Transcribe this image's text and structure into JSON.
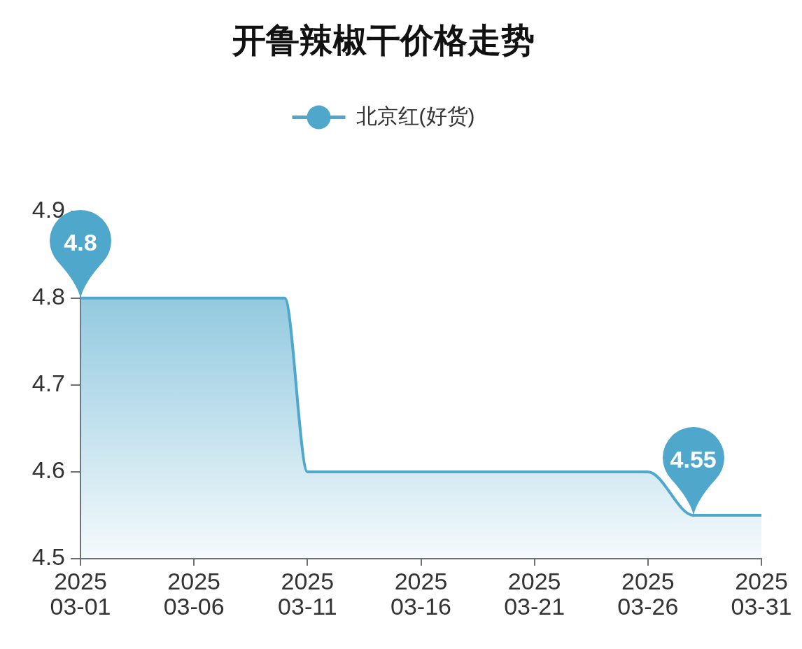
{
  "chart_data": {
    "type": "area",
    "title": "开鲁辣椒干价格走势",
    "x": [
      "2025-03-01",
      "2025-03-10",
      "2025-03-11",
      "2025-03-26",
      "2025-03-28",
      "2025-03-31"
    ],
    "series": [
      {
        "name": "北京红(好货)",
        "color": "#4fa8cc",
        "values": [
          4.8,
          4.8,
          4.6,
          4.6,
          4.55,
          4.55
        ]
      }
    ],
    "xlim": [
      "2025-03-01",
      "2025-03-31"
    ],
    "xticks": [
      {
        "value": "2025-03-01",
        "label": "2025\n03-01"
      },
      {
        "value": "2025-03-06",
        "label": "2025\n03-06"
      },
      {
        "value": "2025-03-11",
        "label": "2025\n03-11"
      },
      {
        "value": "2025-03-16",
        "label": "2025\n03-16"
      },
      {
        "value": "2025-03-21",
        "label": "2025\n03-21"
      },
      {
        "value": "2025-03-26",
        "label": "2025\n03-26"
      },
      {
        "value": "2025-03-31",
        "label": "2025\n03-31"
      }
    ],
    "ylim": [
      4.5,
      4.9
    ],
    "yticks": [
      4.5,
      4.6,
      4.7,
      4.8,
      4.9
    ],
    "legend": "top",
    "marker": "none",
    "line_style": "solid",
    "annotations": [
      {
        "text": "4.8",
        "x": "2025-03-01",
        "y": 4.8
      },
      {
        "text": "4.55",
        "x": "2025-03-28",
        "y": 4.55
      }
    ]
  }
}
